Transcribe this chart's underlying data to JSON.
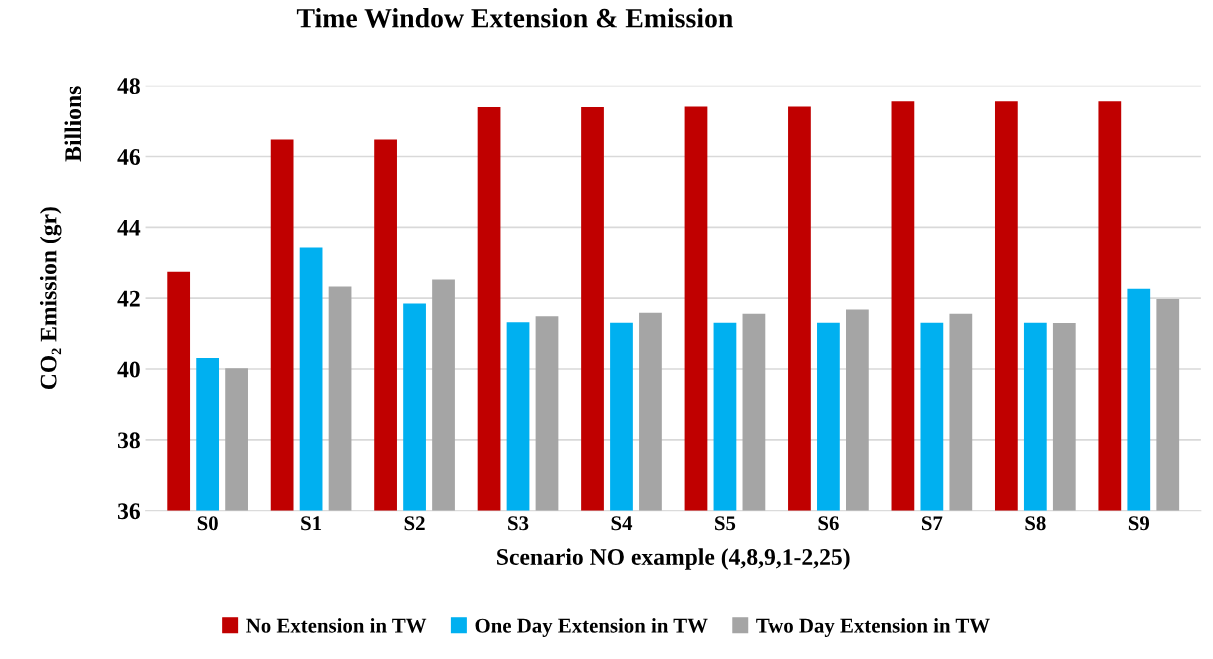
{
  "chart_data": {
    "type": "bar",
    "title": "Time Window Extension & Emission",
    "xlabel": "Scenario NO example (4,8,9,1-2,25)",
    "ylabel": "CO₂ Emission (gr)",
    "annotations": [
      "Billions"
    ],
    "categories": [
      "S0",
      "S1",
      "S2",
      "S3",
      "S4",
      "S5",
      "S6",
      "S7",
      "S8",
      "S9"
    ],
    "series": [
      {
        "name": "No Extension in TW",
        "color": "#c00000",
        "values": [
          42.75,
          46.48,
          46.48,
          47.4,
          47.4,
          47.41,
          47.41,
          47.56,
          47.56,
          47.56
        ]
      },
      {
        "name": "One Day Extension in TW",
        "color": "#00b0f0",
        "values": [
          40.31,
          43.43,
          41.85,
          41.32,
          41.31,
          41.31,
          41.31,
          41.31,
          41.31,
          42.27
        ]
      },
      {
        "name": "Two Day Extension in TW",
        "color": "#a5a5a5",
        "values": [
          40.02,
          42.33,
          42.53,
          41.49,
          41.59,
          41.56,
          41.68,
          41.56,
          41.3,
          41.98
        ]
      }
    ],
    "ylim": [
      36,
      48
    ],
    "yticks": [
      36,
      38,
      40,
      42,
      44,
      46,
      48
    ],
    "grid": "y",
    "legend": "bottom"
  }
}
